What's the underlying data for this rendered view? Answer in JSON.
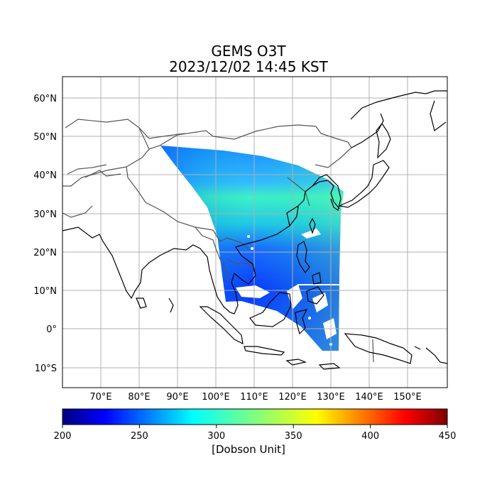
{
  "title": {
    "line1": "GEMS O3T",
    "line2": "2023/12/02 14:45 KST"
  },
  "map": {
    "lon_range": [
      61,
      161
    ],
    "lat_range": [
      -15,
      66
    ],
    "lon_ticks": [
      "70°E",
      "80°E",
      "90°E",
      "100°E",
      "110°E",
      "120°E",
      "130°E",
      "140°E",
      "150°E"
    ],
    "lat_ticks": [
      "60°N",
      "50°N",
      "40°N",
      "30°N",
      "20°N",
      "10°N",
      "0°",
      "10°S"
    ],
    "grid": true
  },
  "colorbar": {
    "min": 200,
    "max": 450,
    "ticks": [
      "200",
      "250",
      "300",
      "350",
      "400",
      "450"
    ],
    "label": "[Dobson Unit]",
    "colormap": "jet"
  },
  "colors": {
    "gridline": "#b0b0b0",
    "coastline": "#000000",
    "border": "#555555"
  }
}
